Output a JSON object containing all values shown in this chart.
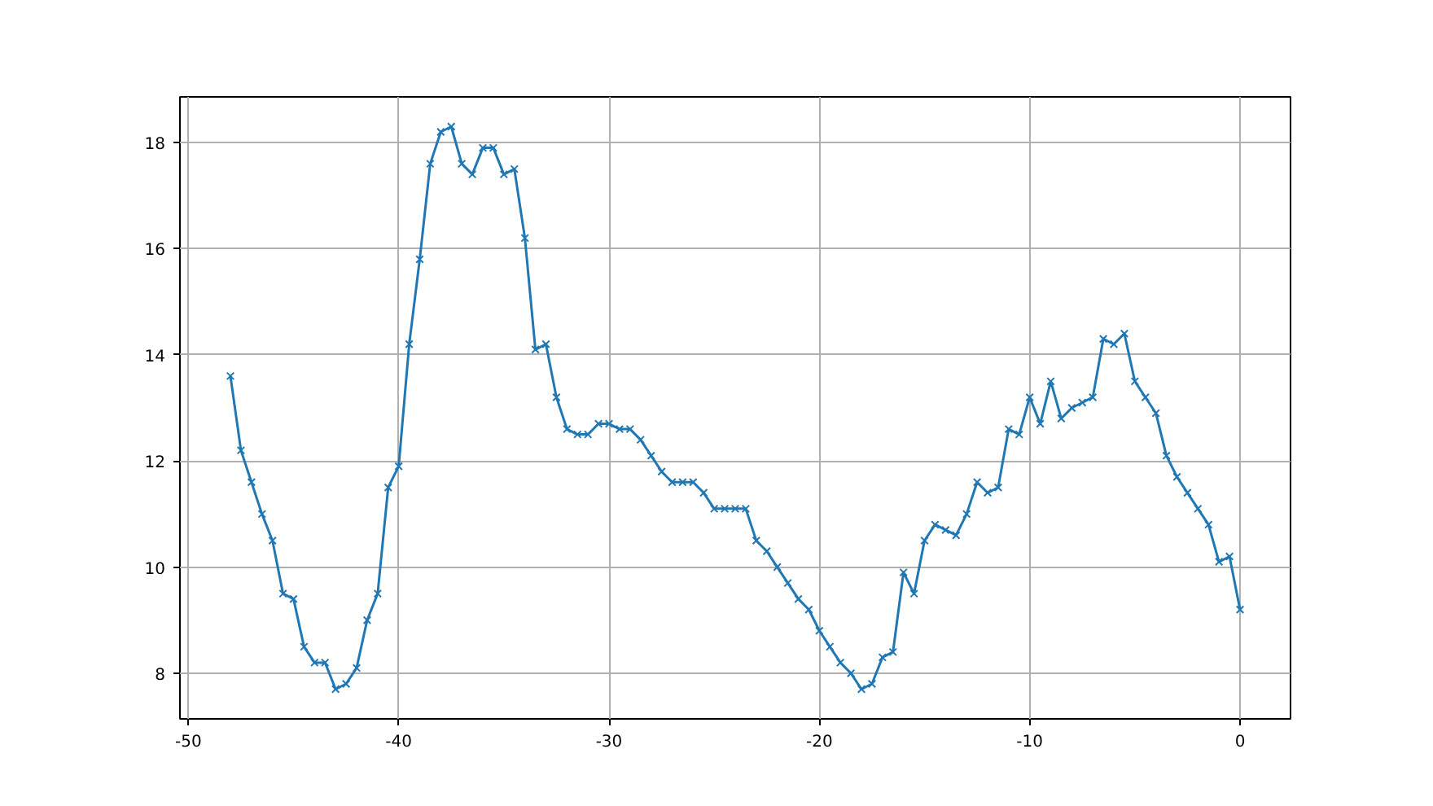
{
  "chart_data": {
    "type": "line",
    "x": [
      -48,
      -47.5,
      -47,
      -46.5,
      -46,
      -45.5,
      -45,
      -44.5,
      -44,
      -43.5,
      -43,
      -42.5,
      -42,
      -41.5,
      -41,
      -40.5,
      -40,
      -39.5,
      -39,
      -38.5,
      -38,
      -37.5,
      -37,
      -36.5,
      -36,
      -35.5,
      -35,
      -34.5,
      -34,
      -33.5,
      -33,
      -32.5,
      -32,
      -31.5,
      -31,
      -30.5,
      -30,
      -29.5,
      -29,
      -28.5,
      -28,
      -27.5,
      -27,
      -26.5,
      -26,
      -25.5,
      -25,
      -24.5,
      -24,
      -23.5,
      -23,
      -22.5,
      -22,
      -21.5,
      -21,
      -20.5,
      -20,
      -19.5,
      -19,
      -18.5,
      -18,
      -17.5,
      -17,
      -16.5,
      -16,
      -15.5,
      -15,
      -14.5,
      -14,
      -13.5,
      -13,
      -12.5,
      -12,
      -11.5,
      -11,
      -10.5,
      -10,
      -9.5,
      -9,
      -8.5,
      -8,
      -7.5,
      -7,
      -6.5,
      -6,
      -5.5,
      -5,
      -4.5,
      -4,
      -3.5,
      -3,
      -2.5,
      -2,
      -1.5,
      -1,
      -0.5,
      0
    ],
    "series": [
      {
        "color": "#1f77b4",
        "values": [
          13.6,
          12.2,
          11.6,
          11.0,
          10.5,
          9.5,
          9.4,
          8.5,
          8.2,
          8.2,
          7.7,
          7.8,
          8.1,
          9.0,
          9.5,
          11.5,
          11.9,
          14.2,
          15.8,
          17.6,
          18.2,
          18.3,
          17.6,
          17.4,
          17.9,
          17.9,
          17.4,
          17.5,
          16.2,
          14.1,
          14.2,
          13.2,
          12.6,
          12.5,
          12.5,
          12.7,
          12.7,
          12.6,
          12.6,
          12.4,
          12.1,
          11.8,
          11.6,
          11.6,
          11.6,
          11.4,
          11.1,
          11.1,
          11.1,
          11.1,
          10.5,
          10.3,
          10.0,
          9.7,
          9.4,
          9.2,
          8.8,
          8.5,
          8.2,
          8.0,
          7.7,
          7.8,
          8.3,
          8.4,
          9.9,
          9.5,
          10.5,
          10.8,
          10.7,
          10.6,
          11.0,
          11.6,
          11.4,
          11.5,
          12.6,
          12.5,
          13.2,
          12.7,
          13.5,
          12.8,
          13.0,
          13.1,
          13.2,
          14.3,
          14.2,
          14.4,
          13.5,
          13.2,
          12.9,
          12.1,
          11.7,
          11.4,
          11.1,
          10.8,
          10.1,
          10.2,
          9.2
        ]
      }
    ],
    "xlim": [
      -50.4,
      2.4
    ],
    "ylim": [
      7.14,
      18.86
    ],
    "xticks": [
      -50,
      -40,
      -30,
      -20,
      -10,
      0
    ],
    "yticks": [
      8,
      10,
      12,
      14,
      16,
      18
    ],
    "grid": true,
    "marker": "cross",
    "line_style": "solid"
  }
}
